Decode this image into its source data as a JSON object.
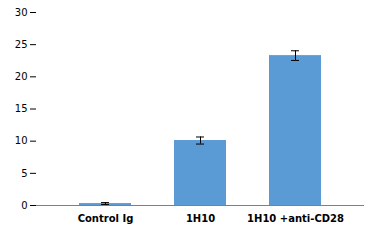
{
  "chart_data": {
    "type": "bar",
    "categories": [
      "Control Ig",
      "1H10",
      "1H10 +anti-CD28"
    ],
    "values": [
      0.3,
      10.1,
      23.3
    ],
    "errors": [
      0.15,
      0.55,
      0.75
    ],
    "color": "#5b9bd5",
    "ylim": [
      0,
      30
    ],
    "yticks": [
      0,
      5,
      10,
      15,
      20,
      25,
      30
    ],
    "grid": false
  }
}
